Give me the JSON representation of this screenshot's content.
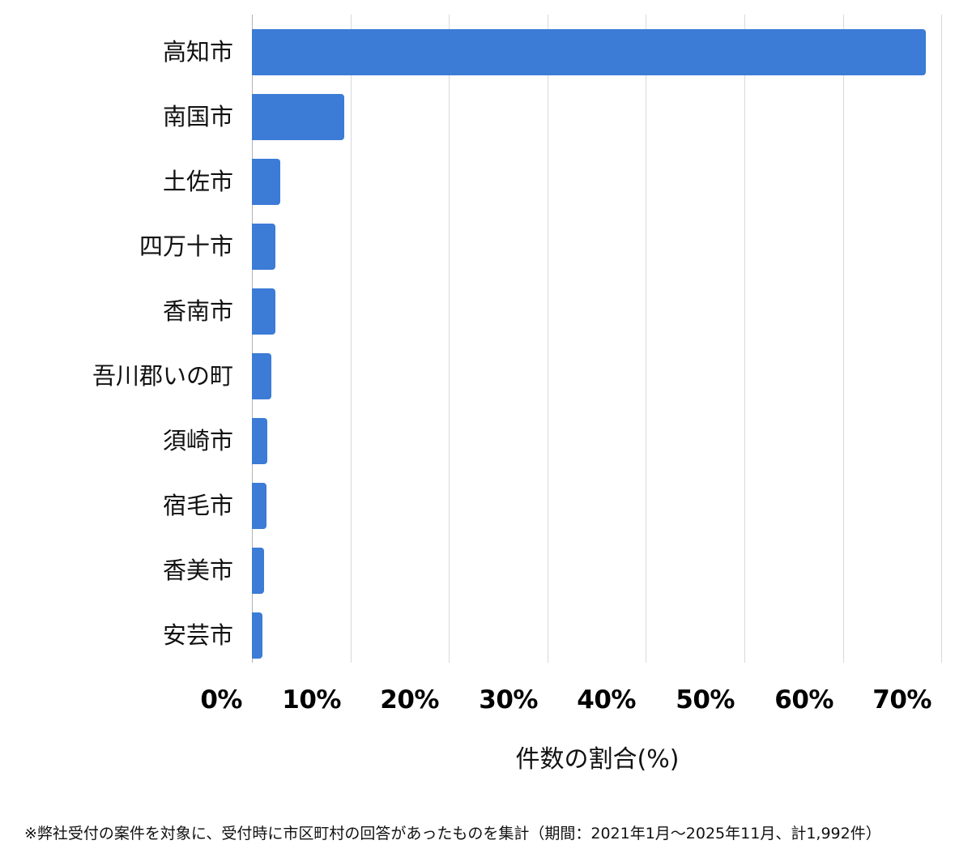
{
  "chart_data": {
    "type": "bar",
    "orientation": "horizontal",
    "title": "",
    "categories": [
      "高知市",
      "南国市",
      "土佐市",
      "四万十市",
      "香南市",
      "吾川郡いの町",
      "須崎市",
      "宿毛市",
      "香美市",
      "安芸市"
    ],
    "values": [
      68.4,
      9.4,
      2.9,
      2.4,
      2.4,
      2.0,
      1.6,
      1.5,
      1.2,
      1.1
    ],
    "unit": "%",
    "xlabel": "件数の割合(%)",
    "ylabel": "",
    "xlim": [
      0,
      70
    ],
    "xticks": [
      0,
      10,
      20,
      30,
      40,
      50,
      60,
      70
    ],
    "xtick_labels": [
      "0%",
      "10%",
      "20%",
      "30%",
      "40%",
      "50%",
      "60%",
      "70%"
    ],
    "grid": "vertical",
    "legend": "none",
    "bar_color": "#3c7bd6"
  },
  "footnote": "※弊社受付の案件を対象に、受付時に市区町村の回答があったものを集計（期間：2021年1月～2025年11月、計1,992件）"
}
